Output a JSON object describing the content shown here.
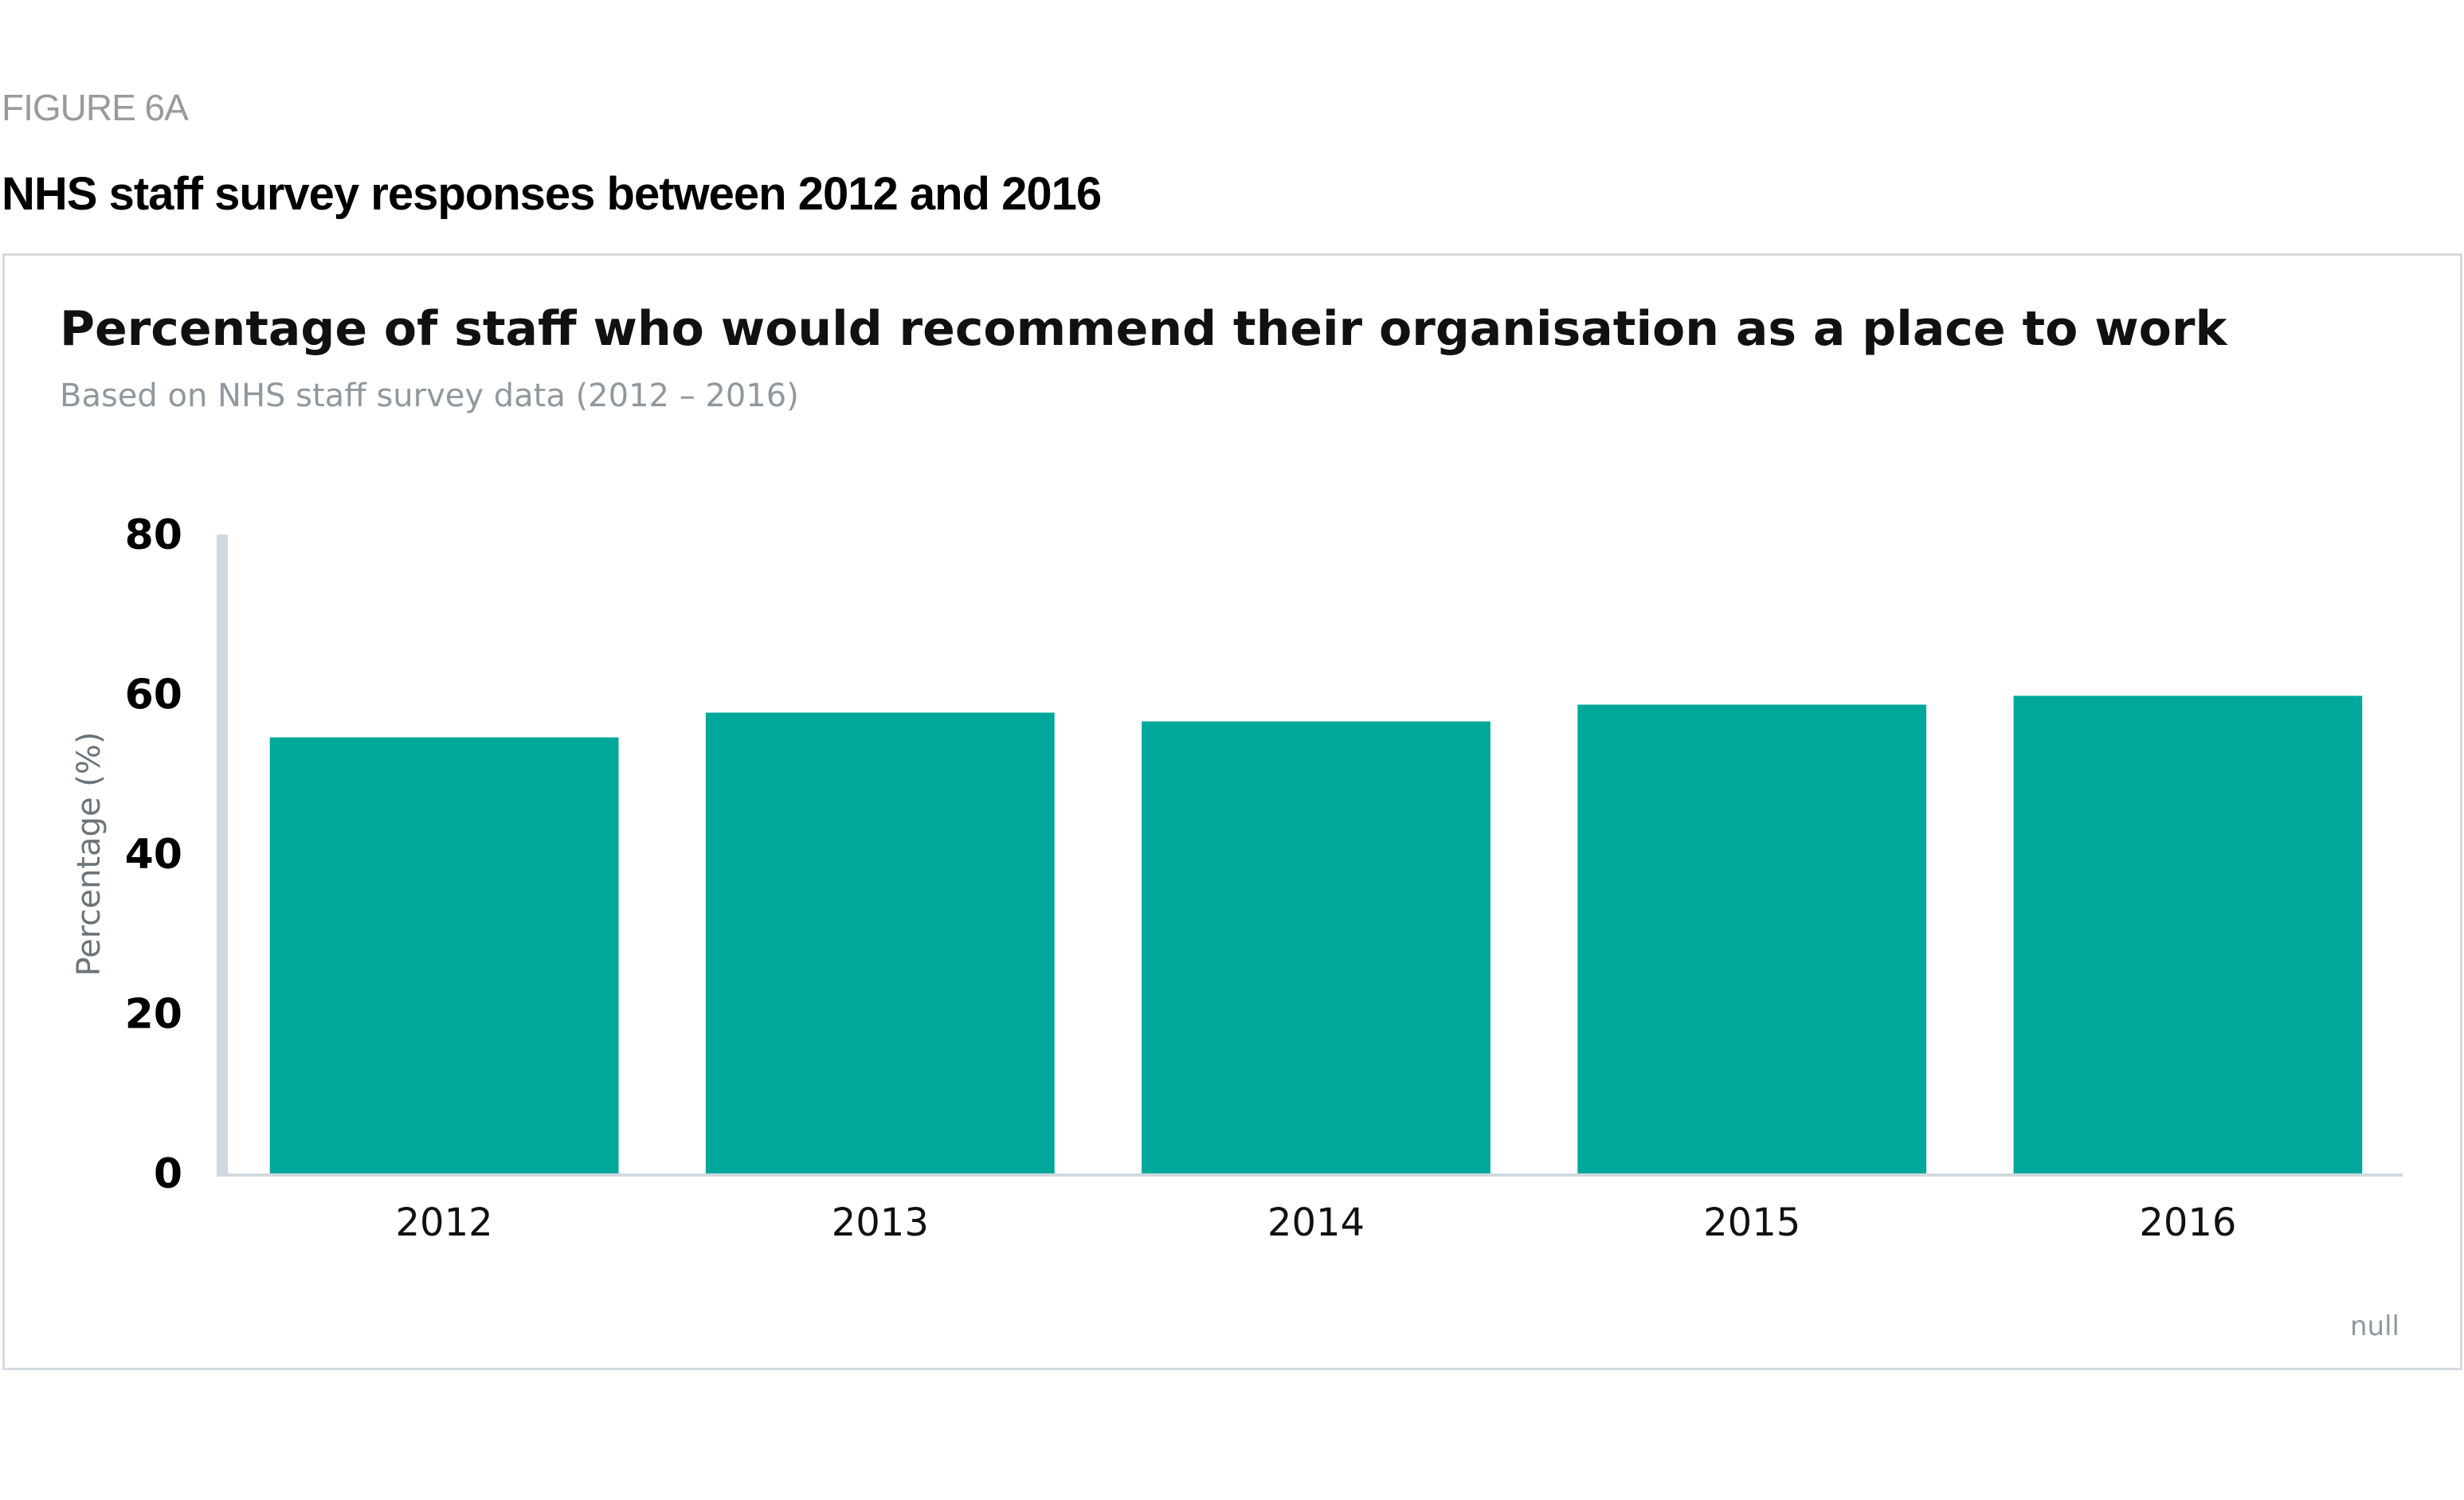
{
  "figure_label": "FIGURE 6A",
  "figure_title": "NHS staff survey responses between 2012 and 2016",
  "credit": "null",
  "chart_data": {
    "type": "bar",
    "title": "Percentage of staff who would recommend their organisation as a place to work",
    "subtitle": "Based on NHS staff survey data (2012 – 2016)",
    "xlabel": "",
    "ylabel": "Percentage (%)",
    "categories": [
      "2012",
      "2013",
      "2014",
      "2015",
      "2016"
    ],
    "values": [
      54.6,
      57.7,
      56.6,
      58.7,
      59.8
    ],
    "ylim": [
      0,
      80
    ],
    "yticks": [
      0,
      20,
      40,
      60,
      80
    ],
    "grid": false,
    "legend": "none",
    "bar_color": "#00a89c",
    "axis_color": "#d0d9de"
  }
}
